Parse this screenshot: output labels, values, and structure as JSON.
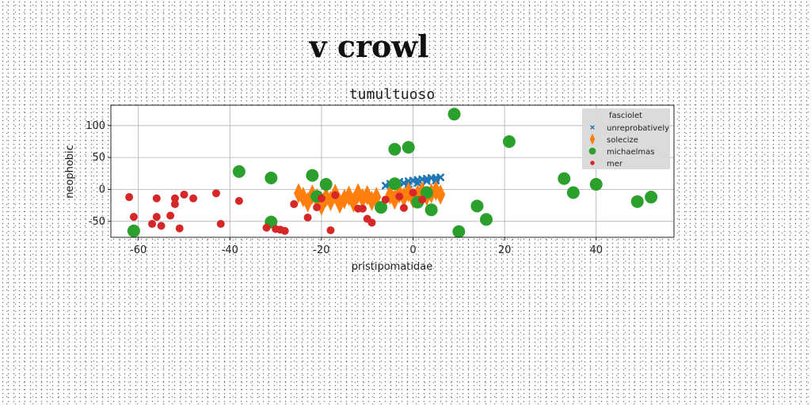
{
  "page": {
    "title": "v crowl"
  },
  "chart_data": {
    "type": "scatter",
    "title": "tumultuoso",
    "xlabel": "pristipomatidae",
    "ylabel": "neophobic",
    "xlim": [
      -66,
      57
    ],
    "ylim": [
      -75,
      132
    ],
    "xticks": [
      -60,
      -40,
      -20,
      0,
      20,
      40
    ],
    "yticks": [
      -50,
      0,
      50,
      100
    ],
    "grid": true,
    "legend": {
      "title": "fasciolet",
      "placement": "top-right"
    },
    "series": [
      {
        "name": "unreprobatively",
        "marker": "x",
        "color": "#1f77b4",
        "points": [
          [
            -6,
            6
          ],
          [
            -5,
            9
          ],
          [
            -4,
            11
          ],
          [
            -3,
            12
          ],
          [
            -2,
            10
          ],
          [
            -1,
            13
          ],
          [
            0,
            14
          ],
          [
            1,
            15
          ],
          [
            2,
            16
          ],
          [
            3,
            17
          ],
          [
            4,
            18
          ],
          [
            5,
            18
          ],
          [
            6,
            19
          ],
          [
            -1,
            8
          ],
          [
            1,
            10
          ],
          [
            3,
            13
          ],
          [
            5,
            14
          ]
        ]
      },
      {
        "name": "solecize",
        "marker": "diamond",
        "color": "#ff7f0e",
        "points": [
          [
            -25,
            -6
          ],
          [
            -24,
            -12
          ],
          [
            -23,
            -20
          ],
          [
            -22,
            -8
          ],
          [
            -21,
            -14
          ],
          [
            -20,
            -25
          ],
          [
            -19,
            -12
          ],
          [
            -18,
            -18
          ],
          [
            -17,
            -7
          ],
          [
            -16,
            -22
          ],
          [
            -15,
            -15
          ],
          [
            -14,
            -10
          ],
          [
            -13,
            -20
          ],
          [
            -12,
            -6
          ],
          [
            -11,
            -14
          ],
          [
            -10,
            -9
          ],
          [
            -9,
            -18
          ],
          [
            -8,
            -12
          ],
          [
            -5,
            -8
          ],
          [
            -4,
            -16
          ],
          [
            -3,
            -6
          ],
          [
            -2,
            -12
          ],
          [
            -1,
            -4
          ],
          [
            0,
            -14
          ],
          [
            1,
            -8
          ],
          [
            2,
            -3
          ],
          [
            3,
            -10
          ],
          [
            4,
            -6
          ],
          [
            5,
            -2
          ],
          [
            6,
            -8
          ]
        ]
      },
      {
        "name": "michaelmas",
        "marker": "circle-large",
        "color": "#2ca02c",
        "points": [
          [
            -61,
            -65
          ],
          [
            -38,
            28
          ],
          [
            -31,
            18
          ],
          [
            -31,
            -51
          ],
          [
            -22,
            22
          ],
          [
            -21,
            -11
          ],
          [
            -19,
            8
          ],
          [
            -7,
            -28
          ],
          [
            -4,
            63
          ],
          [
            -4,
            9
          ],
          [
            -1,
            66
          ],
          [
            1,
            -20
          ],
          [
            3,
            -5
          ],
          [
            4,
            -32
          ],
          [
            9,
            118
          ],
          [
            10,
            -66
          ],
          [
            14,
            -26
          ],
          [
            16,
            -47
          ],
          [
            21,
            75
          ],
          [
            33,
            17
          ],
          [
            35,
            -5
          ],
          [
            40,
            8
          ],
          [
            49,
            -19
          ],
          [
            52,
            -12
          ]
        ]
      },
      {
        "name": "mer",
        "marker": "circle-small",
        "color": "#d62728",
        "points": [
          [
            -62,
            -12
          ],
          [
            -61,
            -43
          ],
          [
            -57,
            -54
          ],
          [
            -56,
            -14
          ],
          [
            -56,
            -43
          ],
          [
            -55,
            -57
          ],
          [
            -53,
            -41
          ],
          [
            -52,
            -14
          ],
          [
            -52,
            -23
          ],
          [
            -51,
            -61
          ],
          [
            -50,
            -8
          ],
          [
            -48,
            -14
          ],
          [
            -43,
            -6
          ],
          [
            -42,
            -54
          ],
          [
            -38,
            -18
          ],
          [
            -32,
            -60
          ],
          [
            -30,
            -62
          ],
          [
            -29,
            -63
          ],
          [
            -28,
            -65
          ],
          [
            -26,
            -23
          ],
          [
            -23,
            -44
          ],
          [
            -21,
            -28
          ],
          [
            -20,
            -14
          ],
          [
            -18,
            -64
          ],
          [
            -17,
            -9
          ],
          [
            -12,
            -30
          ],
          [
            -11,
            -30
          ],
          [
            -10,
            -46
          ],
          [
            -9,
            -52
          ],
          [
            -6,
            -16
          ],
          [
            -3,
            -11
          ],
          [
            -2,
            -29
          ],
          [
            0,
            -5
          ],
          [
            2,
            -16
          ]
        ]
      }
    ]
  }
}
